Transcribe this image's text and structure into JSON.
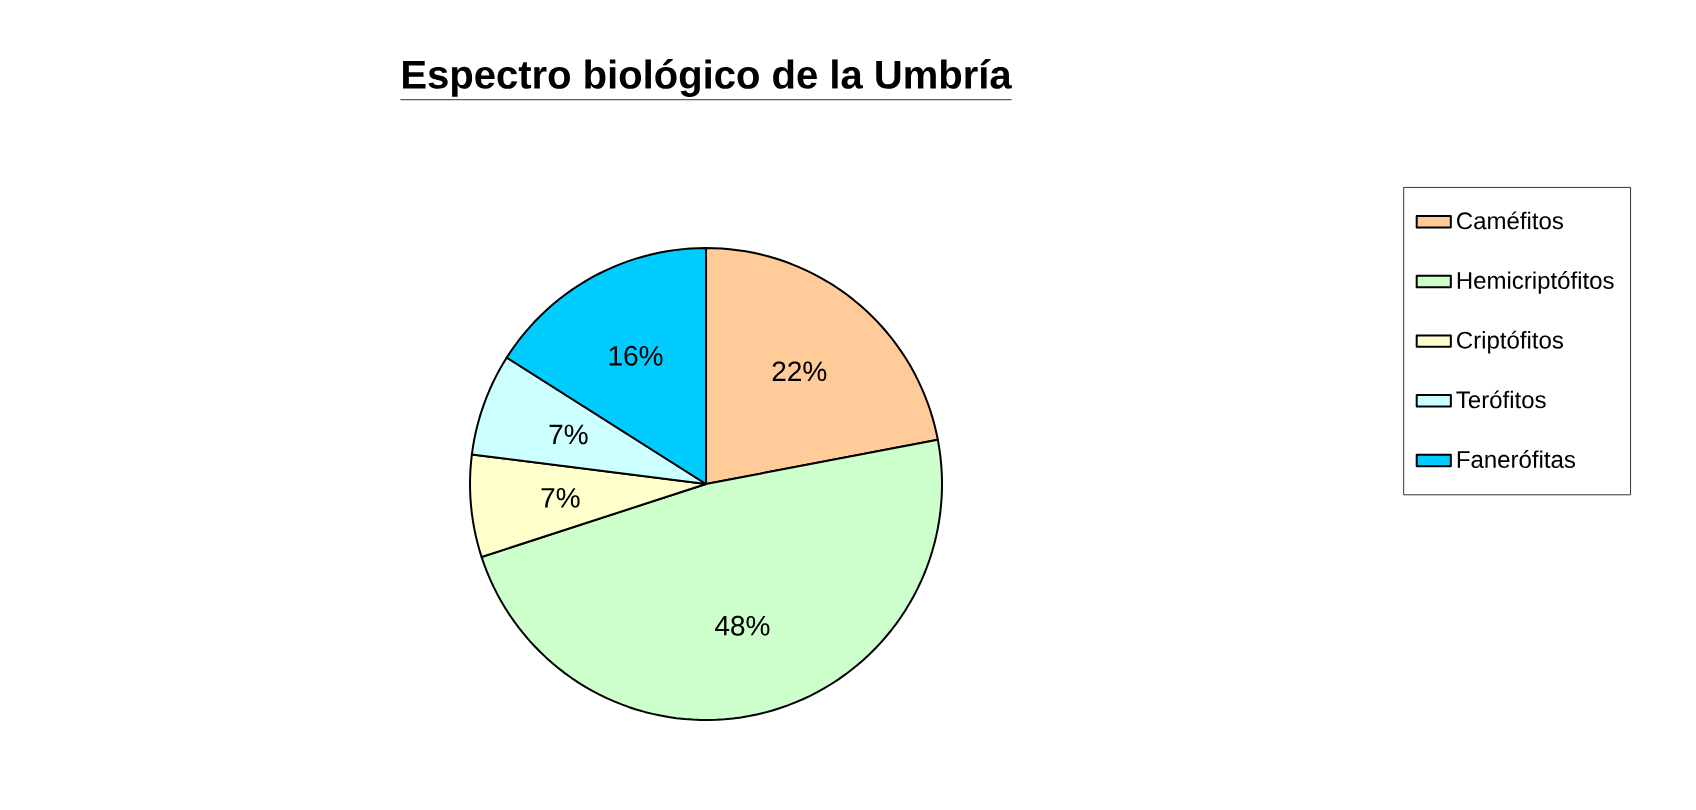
{
  "chart_data": {
    "type": "pie",
    "title": "Espectro biológico de la Umbría",
    "categories": [
      "Caméfitos",
      "Hemicriptófitos",
      "Criptófitos",
      "Terófitos",
      "Fanerófitas"
    ],
    "values": [
      22,
      48,
      7,
      7,
      16
    ],
    "colors": [
      "#ffcc99",
      "#ccffcc",
      "#ffffcc",
      "#ccffff",
      "#00ccff"
    ],
    "value_labels": [
      "22%",
      "48%",
      "7%",
      "7%",
      "16%"
    ],
    "legend": "right"
  }
}
